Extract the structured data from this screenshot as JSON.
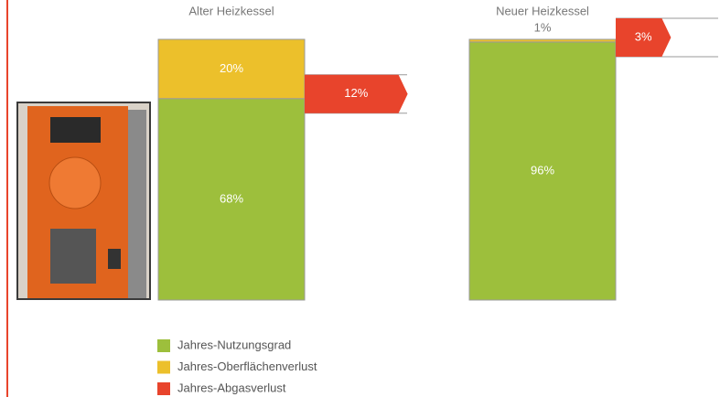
{
  "chart_data": {
    "type": "stacked_bar",
    "categories": [
      "Alter Heizkessel",
      "Neuer Heizkessel"
    ],
    "series": [
      {
        "name": "Jahres-Nutzungsgrad",
        "color": "#9dbf3c",
        "values": [
          68,
          96
        ],
        "value_labels": [
          "68%",
          "96%"
        ]
      },
      {
        "name": "Jahres-Oberflächenverlust",
        "color": "#ecc02b",
        "values": [
          20,
          1
        ],
        "value_labels": [
          "20%",
          "1%"
        ]
      },
      {
        "name": "Jahres-Abgasverlust",
        "color": "#e8442c",
        "values": [
          12,
          3
        ],
        "value_labels": [
          "12%",
          "3%"
        ]
      }
    ]
  }
}
